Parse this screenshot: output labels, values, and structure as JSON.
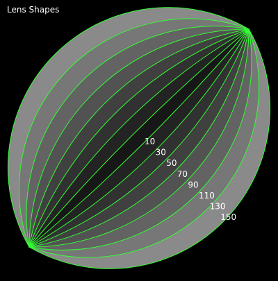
{
  "window": {
    "title": "Lens Shapes"
  },
  "lenses": {
    "angles": [
      150,
      130,
      110,
      90,
      70,
      50,
      30,
      10
    ],
    "labels": [
      "10",
      "30",
      "50",
      "70",
      "90",
      "110",
      "130",
      "150"
    ],
    "fill_colors": [
      "#8a8a8a",
      "#777777",
      "#636363",
      "#525252",
      "#404040",
      "#313131",
      "#232323",
      "#171717"
    ],
    "outline_color": "#33ff33",
    "background_color": "#000000",
    "label_color": "#ffffff"
  }
}
